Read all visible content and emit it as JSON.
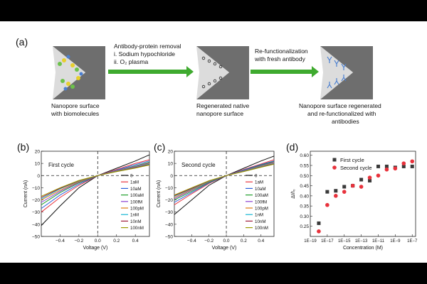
{
  "panel_a": {
    "letter": "(a)",
    "step1_title": "Antibody-protein removal",
    "step1_items": [
      "i.   Sodium hypochloride",
      "ii.  O₂ plasma"
    ],
    "step2_title": [
      "Re-functionalization",
      "with fresh antibody"
    ],
    "captions": {
      "left": [
        "Nanopore surface",
        "with biomolecules"
      ],
      "middle": [
        "Regenerated native",
        "nanopore surface"
      ],
      "right": [
        "Nanopore surface regenerated",
        "and re-functionalized with",
        "antibodies"
      ]
    },
    "arrow_color": "#3faa2f",
    "pore_color": "#6e6e6e"
  },
  "chart_data": [
    {
      "type": "line",
      "panel": "(b)",
      "annotation": "First cycle",
      "xlabel": "Voltage (V)",
      "ylabel": "Current (nA)",
      "xlim": [
        -0.6,
        0.55
      ],
      "ylim": [
        -50,
        20
      ],
      "xticks": [
        -0.4,
        -0.2,
        0.0,
        0.2,
        0.4
      ],
      "xtick_labels": [
        "−0.4",
        "−0.2",
        "0.0",
        "0.2",
        "0.4"
      ],
      "yticks": [
        -50,
        -40,
        -30,
        -20,
        -10,
        0,
        10,
        20
      ],
      "ytick_labels": [
        "−50",
        "−40",
        "−30",
        "−20",
        "−10",
        "0",
        "10",
        "20"
      ],
      "legend": "lower-right",
      "series": [
        {
          "name": "0",
          "color": "#111111",
          "x": [
            -0.6,
            -0.4,
            -0.2,
            0,
            0.2,
            0.4,
            0.55
          ],
          "y": [
            -41,
            -25,
            -10,
            0,
            6,
            12,
            17
          ]
        },
        {
          "name": "1aM",
          "color": "#e8323c",
          "x": [
            -0.6,
            -0.4,
            -0.2,
            0,
            0.2,
            0.4,
            0.55
          ],
          "y": [
            -30,
            -18,
            -8,
            0,
            5,
            10,
            13
          ]
        },
        {
          "name": "10aM",
          "color": "#2b5fd9",
          "x": [
            -0.6,
            -0.4,
            -0.2,
            0,
            0.2,
            0.4,
            0.55
          ],
          "y": [
            -27,
            -16,
            -7,
            0,
            4.5,
            9,
            12
          ]
        },
        {
          "name": "100aM",
          "color": "#1f9e2c",
          "x": [
            -0.6,
            -0.4,
            -0.2,
            0,
            0.2,
            0.4,
            0.55
          ],
          "y": [
            -24,
            -14,
            -6,
            0,
            4,
            8,
            11
          ]
        },
        {
          "name": "100fM",
          "color": "#8a3fd1",
          "x": [
            -0.6,
            -0.4,
            -0.2,
            0,
            0.2,
            0.4,
            0.55
          ],
          "y": [
            -22,
            -13,
            -5.5,
            0,
            4,
            7.5,
            10.5
          ]
        },
        {
          "name": "100pM",
          "color": "#e07a10",
          "x": [
            -0.6,
            -0.4,
            -0.2,
            0,
            0.2,
            0.4,
            0.55
          ],
          "y": [
            -20,
            -12,
            -5,
            0,
            3.8,
            7,
            10
          ]
        },
        {
          "name": "1nM",
          "color": "#15b6d3",
          "x": [
            -0.6,
            -0.4,
            -0.2,
            0,
            0.2,
            0.4,
            0.55
          ],
          "y": [
            -19,
            -11,
            -4.5,
            0,
            3.5,
            6.8,
            9.5
          ]
        },
        {
          "name": "10nM",
          "color": "#9e1b3a",
          "x": [
            -0.6,
            -0.4,
            -0.2,
            0,
            0.2,
            0.4,
            0.55
          ],
          "y": [
            -18,
            -10.5,
            -4.2,
            0,
            3.3,
            6.5,
            9
          ]
        },
        {
          "name": "100nM",
          "color": "#9b9a00",
          "x": [
            -0.6,
            -0.4,
            -0.2,
            0,
            0.2,
            0.4,
            0.55
          ],
          "y": [
            -17,
            -10,
            -4,
            0,
            3.2,
            6.2,
            8.7
          ]
        }
      ]
    },
    {
      "type": "line",
      "panel": "(c)",
      "annotation": "Second cycle",
      "xlabel": "Voltage (V)",
      "ylabel": "Current (nA)",
      "xlim": [
        -0.6,
        0.55
      ],
      "ylim": [
        -50,
        20
      ],
      "xticks": [
        -0.4,
        -0.2,
        0.0,
        0.2,
        0.4
      ],
      "xtick_labels": [
        "−0.4",
        "−0.2",
        "0.0",
        "0.2",
        "0.4"
      ],
      "yticks": [
        -50,
        -40,
        -30,
        -20,
        -10,
        0,
        10,
        20
      ],
      "ytick_labels": [
        "−50",
        "−40",
        "−30",
        "−20",
        "−10",
        "0",
        "10",
        "20"
      ],
      "legend": "lower-right",
      "series": [
        {
          "name": "0",
          "color": "#111111",
          "x": [
            -0.6,
            -0.4,
            -0.2,
            0,
            0.2,
            0.4,
            0.55
          ],
          "y": [
            -32,
            -20,
            -8,
            0,
            6,
            12,
            16
          ]
        },
        {
          "name": "1aM",
          "color": "#e8323c",
          "x": [
            -0.6,
            -0.4,
            -0.2,
            0,
            0.2,
            0.4,
            0.55
          ],
          "y": [
            -24,
            -15,
            -6.5,
            0,
            5,
            9.5,
            13
          ]
        },
        {
          "name": "10aM",
          "color": "#2b5fd9",
          "x": [
            -0.6,
            -0.4,
            -0.2,
            0,
            0.2,
            0.4,
            0.55
          ],
          "y": [
            -22,
            -14,
            -6,
            0,
            4.6,
            9,
            12
          ]
        },
        {
          "name": "100aM",
          "color": "#1f9e2c",
          "x": [
            -0.6,
            -0.4,
            -0.2,
            0,
            0.2,
            0.4,
            0.55
          ],
          "y": [
            -20,
            -13,
            -5.5,
            0,
            4.2,
            8.5,
            11.5
          ]
        },
        {
          "name": "100fM",
          "color": "#8a3fd1",
          "x": [
            -0.6,
            -0.4,
            -0.2,
            0,
            0.2,
            0.4,
            0.55
          ],
          "y": [
            -19,
            -12,
            -5,
            0,
            4,
            8,
            11
          ]
        },
        {
          "name": "100pM",
          "color": "#e07a10",
          "x": [
            -0.6,
            -0.4,
            -0.2,
            0,
            0.2,
            0.4,
            0.55
          ],
          "y": [
            -18,
            -11.5,
            -4.8,
            0,
            3.8,
            7.6,
            10.5
          ]
        },
        {
          "name": "1nM",
          "color": "#15b6d3",
          "x": [
            -0.6,
            -0.4,
            -0.2,
            0,
            0.2,
            0.4,
            0.55
          ],
          "y": [
            -17,
            -11,
            -4.6,
            0,
            3.6,
            7.3,
            10
          ]
        },
        {
          "name": "10nM",
          "color": "#9e1b3a",
          "x": [
            -0.6,
            -0.4,
            -0.2,
            0,
            0.2,
            0.4,
            0.55
          ],
          "y": [
            -16.5,
            -10.5,
            -4.4,
            0,
            3.4,
            7,
            9.6
          ]
        },
        {
          "name": "100nM",
          "color": "#9b9a00",
          "x": [
            -0.6,
            -0.4,
            -0.2,
            0,
            0.2,
            0.4,
            0.55
          ],
          "y": [
            -16,
            -10,
            -4.2,
            0,
            3.3,
            6.8,
            9.3
          ]
        }
      ]
    },
    {
      "type": "scatter",
      "panel": "(d)",
      "xlabel": "Concentration (M)",
      "ylabel": "ΔI/I₀",
      "xscale": "log",
      "xlim_exp": [
        -19,
        -6.6
      ],
      "ylim": [
        0.2,
        0.62
      ],
      "xticks_exp": [
        -19,
        -17,
        -15,
        -13,
        -11,
        -9,
        -7
      ],
      "xtick_labels": [
        "1E−19",
        "1E−17",
        "1E−15",
        "1E−13",
        "1E−11",
        "1E−9",
        "1E−7"
      ],
      "yticks": [
        0.25,
        0.3,
        0.35,
        0.4,
        0.45,
        0.5,
        0.55,
        0.6
      ],
      "ytick_labels": [
        "0.25",
        "0.30",
        "0.35",
        "0.40",
        "0.45",
        "0.50",
        "0.55",
        "0.60"
      ],
      "legend": "top-right",
      "series": [
        {
          "name": "First cycle",
          "marker": "square",
          "color": "#3a3a3a",
          "x_exp": [
            -18,
            -17,
            -16,
            -15,
            -14,
            -13,
            -12,
            -11,
            -10,
            -9,
            -8,
            -7
          ],
          "y": [
            0.265,
            0.42,
            0.425,
            0.445,
            0.45,
            0.48,
            0.475,
            0.545,
            0.545,
            0.54,
            0.545,
            0.545
          ]
        },
        {
          "name": "Second cycle",
          "marker": "circle",
          "color": "#e8323c",
          "x_exp": [
            -18,
            -17,
            -16,
            -15,
            -14,
            -13,
            -12,
            -11,
            -10,
            -9,
            -8,
            -7
          ],
          "y": [
            0.225,
            0.355,
            0.4,
            0.42,
            0.45,
            0.445,
            0.49,
            0.5,
            0.53,
            0.535,
            0.56,
            0.57
          ]
        }
      ]
    }
  ]
}
